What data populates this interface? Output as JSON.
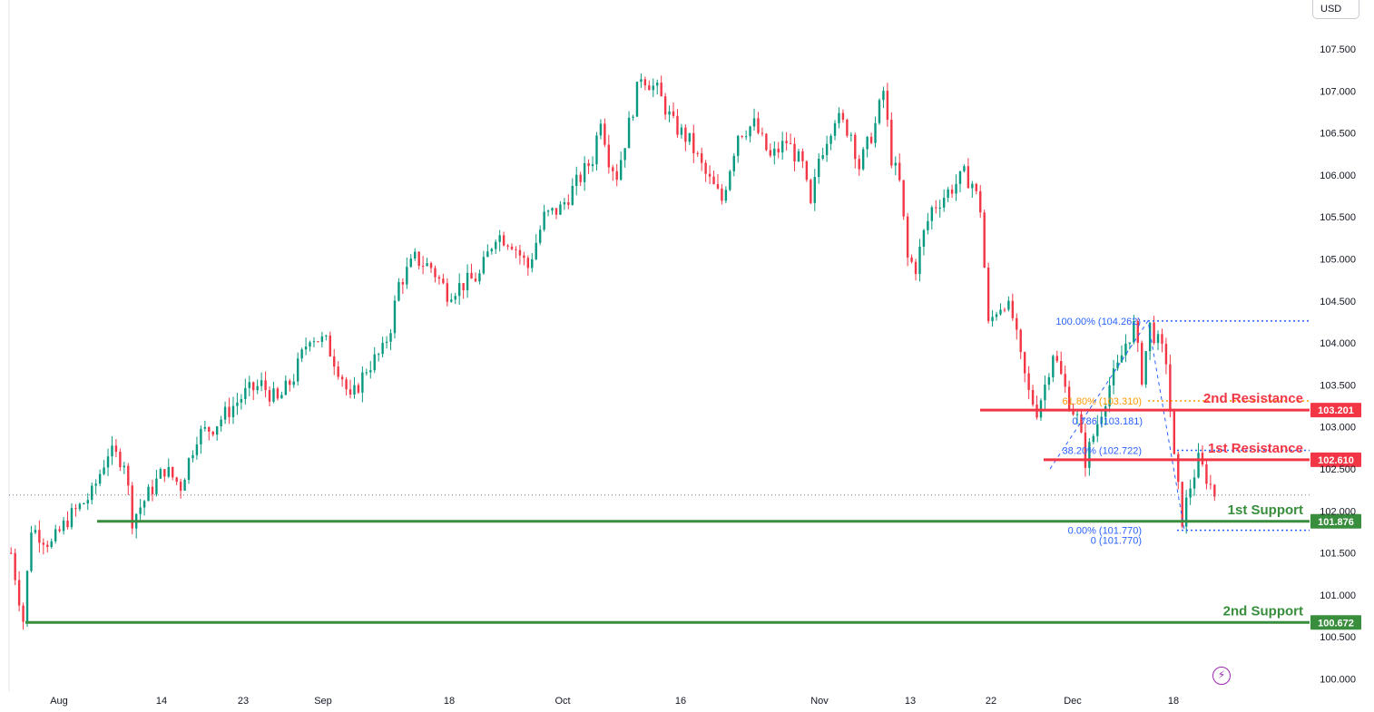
{
  "currency": "USD",
  "chart_data": {
    "type": "candlestick",
    "yaxis": {
      "ticks": [
        "107.500",
        "107.000",
        "106.500",
        "106.000",
        "105.500",
        "105.000",
        "104.500",
        "104.000",
        "103.500",
        "103.000",
        "102.500",
        "102.000",
        "101.500",
        "101.000",
        "100.500",
        "100.000"
      ]
    },
    "xaxis": {
      "ticks": [
        "Aug",
        "14",
        "23",
        "Sep",
        "18",
        "Oct",
        "16",
        "Nov",
        "13",
        "22",
        "Dec",
        "18"
      ]
    },
    "levels": [
      {
        "name": "2nd Resistance",
        "value": 103.201,
        "price_label": "103.201",
        "color": "#f23645"
      },
      {
        "name": "1st Resistance",
        "value": 102.61,
        "price_label": "102.610",
        "color": "#f23645"
      },
      {
        "name": "1st Support",
        "value": 101.876,
        "price_label": "101.876",
        "color": "#388e3c"
      },
      {
        "name": "2nd Support",
        "value": 100.672,
        "price_label": "100.672",
        "color": "#388e3c"
      }
    ],
    "fibonacci": [
      {
        "label": "100.00% (104.262)",
        "value": 104.262,
        "color": "#2962ff"
      },
      {
        "label": "61.80% (103.310)",
        "value": 103.31,
        "color": "#ff9800"
      },
      {
        "label": "0.786 (103.181)",
        "value": 103.181,
        "color": "#2962ff"
      },
      {
        "label": "38.20% (102.722)",
        "value": 102.722,
        "color": "#2962ff"
      },
      {
        "label": "0.00% (101.770)",
        "value": 101.77,
        "color": "#2962ff"
      },
      {
        "label": "0 (101.770)",
        "value": 101.77,
        "color": "#2962ff"
      }
    ],
    "colors": {
      "up": "#089981",
      "down": "#f23645",
      "grid": "#f0f3fa"
    },
    "anchors": [
      [
        0,
        101.5
      ],
      [
        3,
        100.7
      ],
      [
        5,
        101.8
      ],
      [
        10,
        101.6
      ],
      [
        14,
        101.9
      ],
      [
        20,
        102.2
      ],
      [
        24,
        102.7
      ],
      [
        28,
        102.6
      ],
      [
        30,
        101.9
      ],
      [
        34,
        102.2
      ],
      [
        38,
        102.5
      ],
      [
        42,
        102.3
      ],
      [
        46,
        102.9
      ],
      [
        50,
        103.0
      ],
      [
        54,
        103.2
      ],
      [
        58,
        103.4
      ],
      [
        62,
        103.5
      ],
      [
        66,
        103.3
      ],
      [
        70,
        103.6
      ],
      [
        74,
        104.1
      ],
      [
        78,
        104.0
      ],
      [
        82,
        103.6
      ],
      [
        84,
        103.3
      ],
      [
        88,
        103.7
      ],
      [
        92,
        103.9
      ],
      [
        94,
        104.2
      ],
      [
        96,
        104.7
      ],
      [
        100,
        105.0
      ],
      [
        104,
        104.9
      ],
      [
        108,
        104.6
      ],
      [
        112,
        104.7
      ],
      [
        116,
        104.8
      ],
      [
        120,
        105.3
      ],
      [
        124,
        105.2
      ],
      [
        128,
        104.9
      ],
      [
        132,
        105.5
      ],
      [
        136,
        105.6
      ],
      [
        140,
        105.9
      ],
      [
        144,
        106.2
      ],
      [
        146,
        106.7
      ],
      [
        148,
        106.2
      ],
      [
        150,
        106.0
      ],
      [
        154,
        106.8
      ],
      [
        156,
        107.2
      ],
      [
        160,
        107.0
      ],
      [
        164,
        106.6
      ],
      [
        168,
        106.4
      ],
      [
        172,
        106.0
      ],
      [
        176,
        105.7
      ],
      [
        180,
        106.5
      ],
      [
        184,
        106.6
      ],
      [
        188,
        106.2
      ],
      [
        192,
        106.4
      ],
      [
        196,
        106.1
      ],
      [
        198,
        105.6
      ],
      [
        200,
        106.2
      ],
      [
        204,
        106.7
      ],
      [
        208,
        106.5
      ],
      [
        210,
        106.1
      ],
      [
        214,
        106.6
      ],
      [
        216,
        107.0
      ],
      [
        218,
        106.2
      ],
      [
        220,
        105.9
      ],
      [
        222,
        105.0
      ],
      [
        224,
        104.9
      ],
      [
        226,
        105.3
      ],
      [
        228,
        105.6
      ],
      [
        232,
        105.8
      ],
      [
        236,
        106.0
      ],
      [
        238,
        105.9
      ],
      [
        240,
        105.6
      ],
      [
        242,
        104.2
      ],
      [
        244,
        104.4
      ],
      [
        246,
        104.5
      ],
      [
        248,
        104.3
      ],
      [
        250,
        103.8
      ],
      [
        252,
        103.4
      ],
      [
        254,
        103.2
      ],
      [
        256,
        103.5
      ],
      [
        258,
        103.9
      ],
      [
        260,
        103.6
      ],
      [
        262,
        103.3
      ],
      [
        264,
        103.1
      ],
      [
        266,
        102.6
      ],
      [
        268,
        102.9
      ],
      [
        270,
        103.2
      ],
      [
        272,
        103.5
      ],
      [
        274,
        103.7
      ],
      [
        276,
        104.0
      ],
      [
        278,
        104.2
      ],
      [
        280,
        103.6
      ],
      [
        282,
        104.2
      ],
      [
        284,
        104.0
      ],
      [
        286,
        103.8
      ],
      [
        288,
        102.6
      ],
      [
        290,
        101.9
      ],
      [
        292,
        102.3
      ],
      [
        294,
        102.6
      ],
      [
        296,
        102.4
      ],
      [
        298,
        102.2
      ]
    ]
  }
}
